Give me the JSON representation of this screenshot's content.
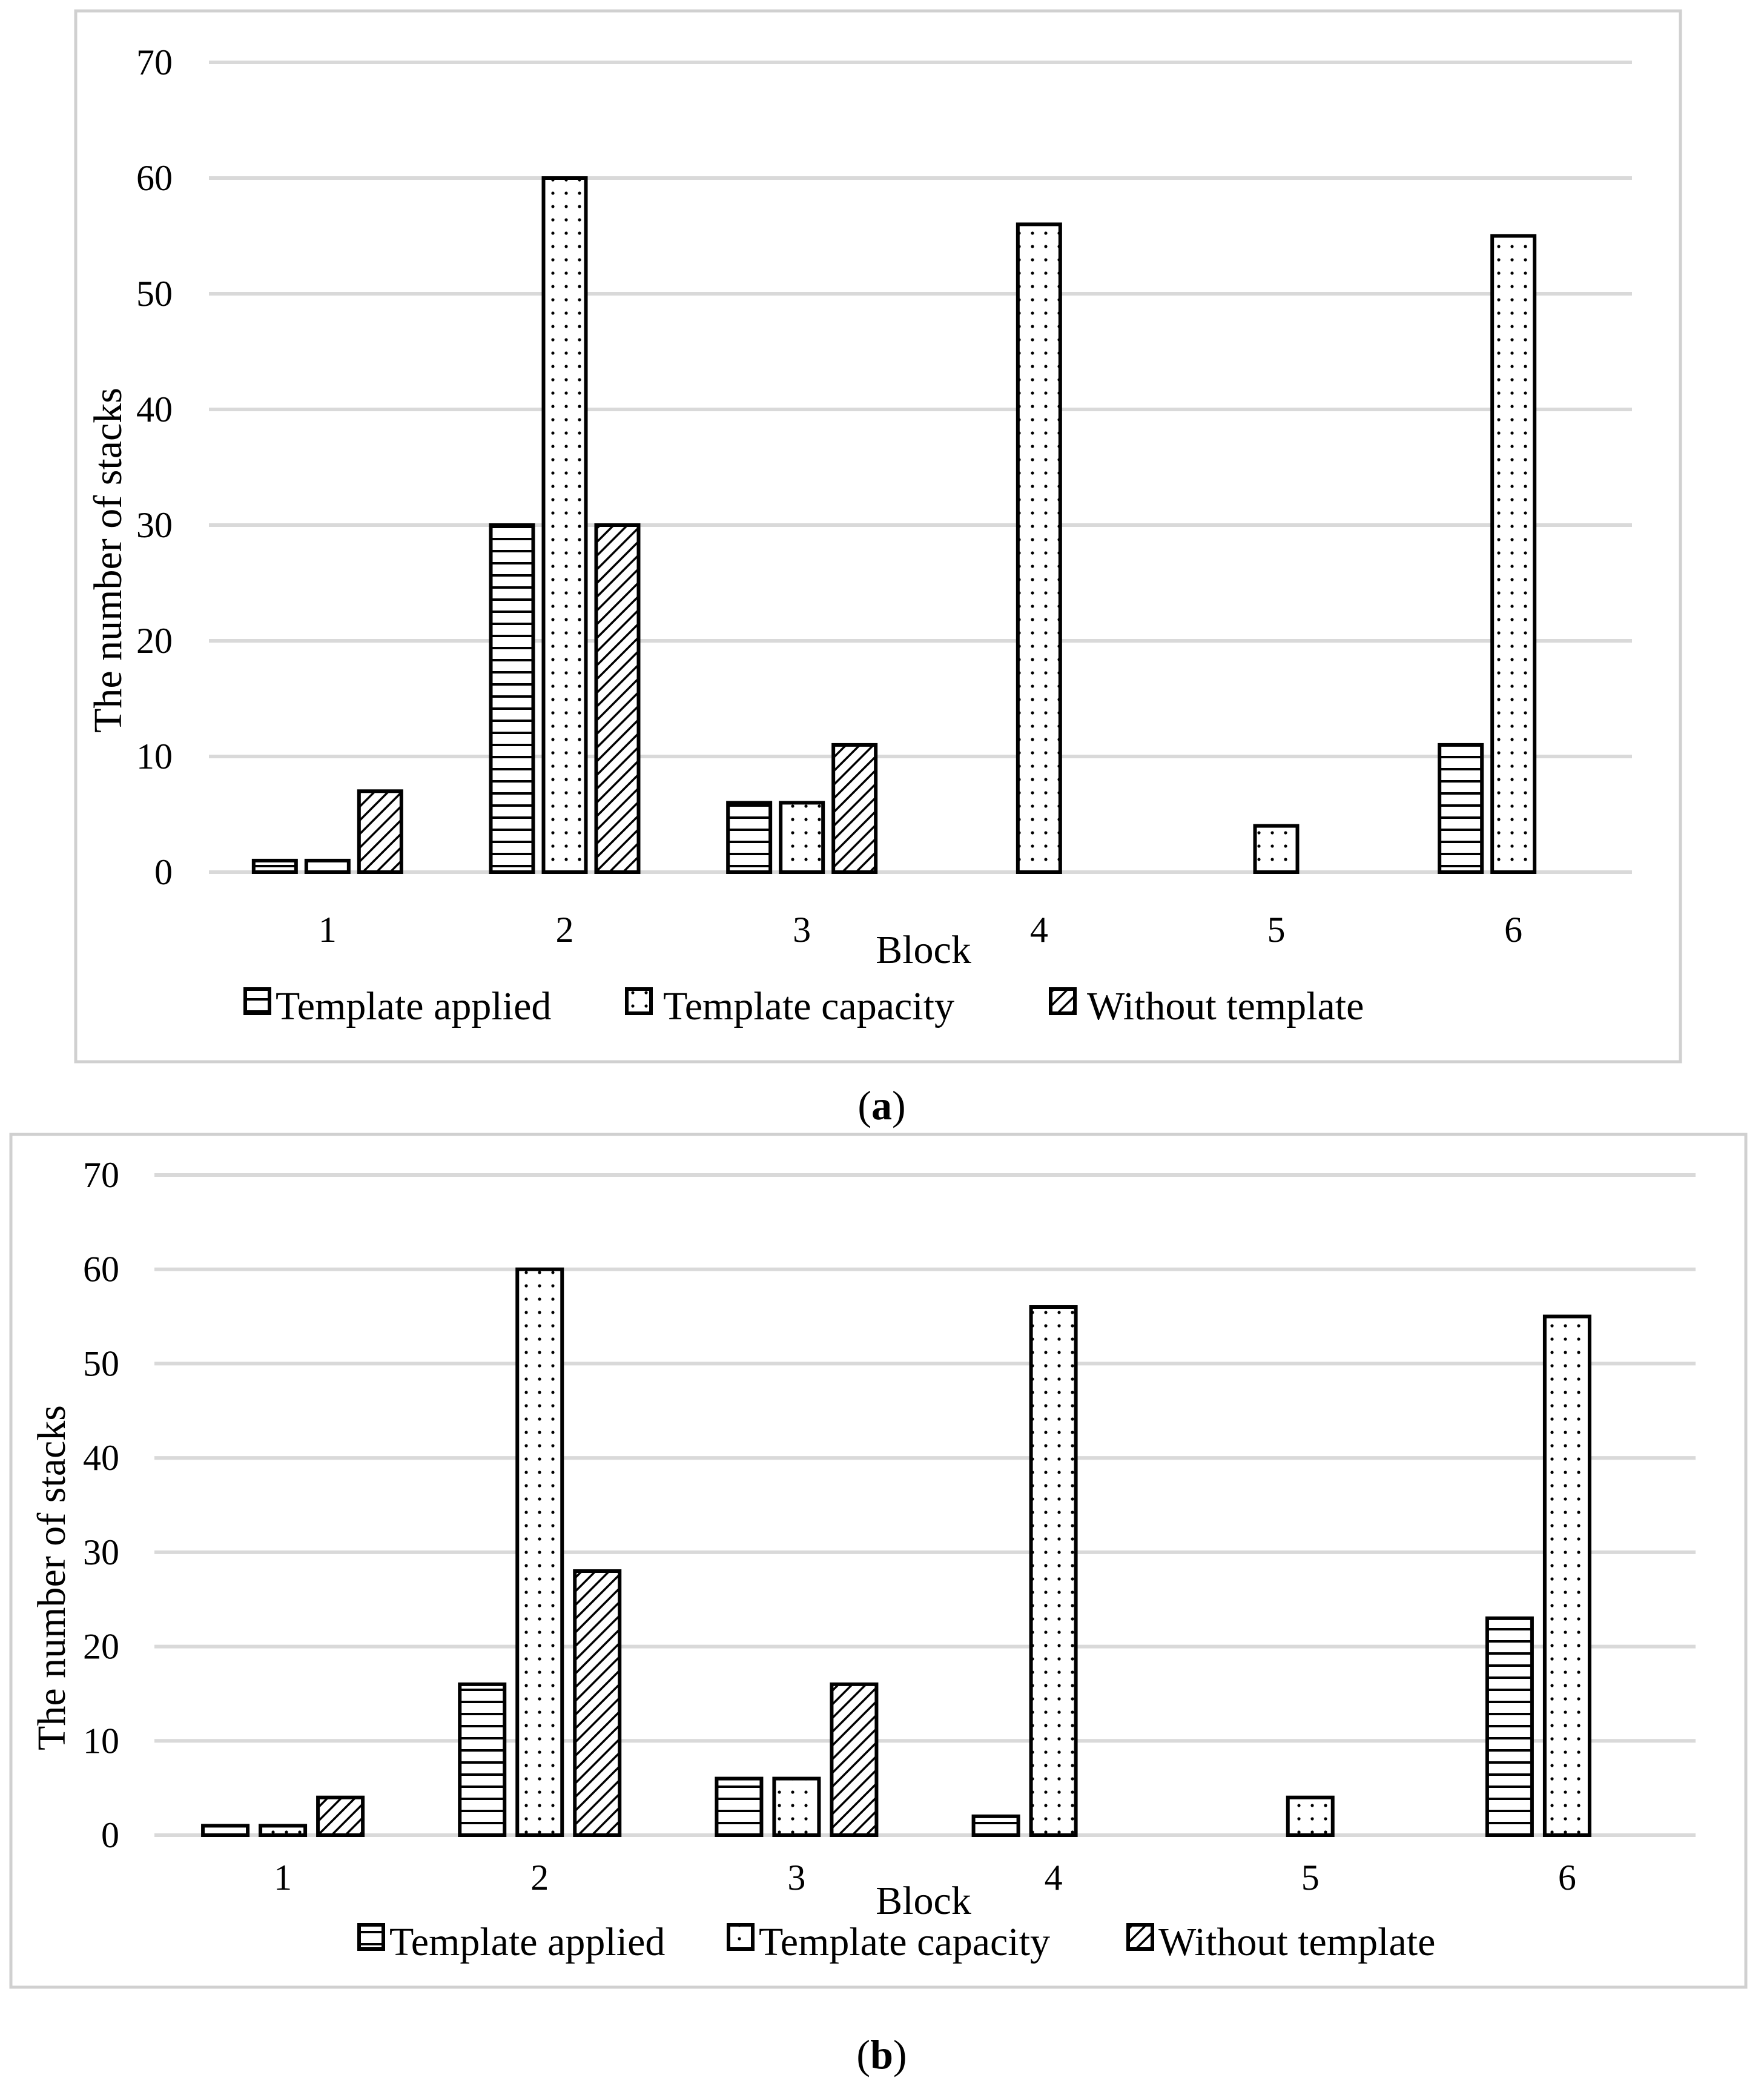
{
  "chart_data": [
    {
      "type": "bar",
      "panel": "a",
      "caption_letter": "a",
      "xlabel": "Block",
      "ylabel": "The number of stacks",
      "ylim": [
        0,
        70
      ],
      "yticks": [
        0,
        10,
        20,
        30,
        40,
        50,
        60,
        70
      ],
      "grid": true,
      "legend_position": "bottom",
      "categories": [
        "1",
        "2",
        "3",
        "4",
        "5",
        "6"
      ],
      "series": [
        {
          "name": "Template applied",
          "pattern": "horizontal-lines",
          "values": [
            1,
            30,
            6,
            0,
            0,
            11
          ]
        },
        {
          "name": "Template capacity",
          "pattern": "dots",
          "values": [
            1,
            60,
            6,
            56,
            4,
            55
          ]
        },
        {
          "name": "Without template",
          "pattern": "diagonal-hatch",
          "values": [
            7,
            30,
            11,
            0,
            0,
            0
          ]
        }
      ]
    },
    {
      "type": "bar",
      "panel": "b",
      "caption_letter": "b",
      "xlabel": "Block",
      "ylabel": "The number of stacks",
      "ylim": [
        0,
        70
      ],
      "yticks": [
        0,
        10,
        20,
        30,
        40,
        50,
        60,
        70
      ],
      "grid": true,
      "legend_position": "bottom",
      "categories": [
        "1",
        "2",
        "3",
        "4",
        "5",
        "6"
      ],
      "series": [
        {
          "name": "Template applied",
          "pattern": "horizontal-lines",
          "values": [
            1,
            16,
            6,
            2,
            0,
            23
          ]
        },
        {
          "name": "Template capacity",
          "pattern": "dots",
          "values": [
            1,
            60,
            6,
            56,
            4,
            55
          ]
        },
        {
          "name": "Without template",
          "pattern": "diagonal-hatch",
          "values": [
            4,
            28,
            16,
            0,
            0,
            0
          ]
        }
      ]
    }
  ]
}
